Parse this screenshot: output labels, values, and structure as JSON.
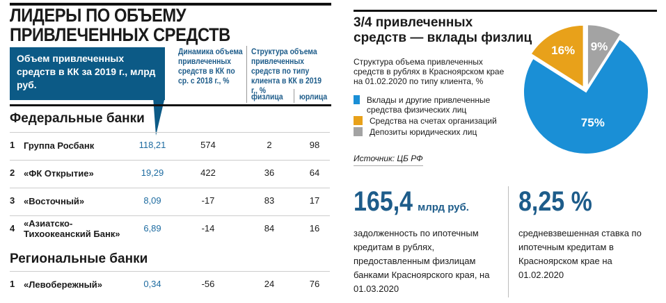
{
  "left": {
    "title_line1": "ЛИДЕРЫ ПО ОБЪЕМУ",
    "title_line2": "ПРИВЛЕЧЕННЫХ СРЕДСТВ",
    "col_volume": "Объем привлеченных средств в КК за 2019 г., млрд руб.",
    "col_dynamics": "Динамика объема привлеченных средств в КК по ср. с 2018 г., %",
    "col_structure": "Структура объема привлеченных средств по типу клиента в КК в 2019 г., %",
    "col_individuals": "физлица",
    "col_legal": "юрлица",
    "federal_title": "Федеральные банки",
    "regional_title": "Региональные банки",
    "federal": [
      {
        "n": "1",
        "name": "Группа Росбанк",
        "volume": "118,21",
        "dyn": "574",
        "fiz": "2",
        "yur": "98"
      },
      {
        "n": "2",
        "name": "«ФК Открытие»",
        "volume": "19,29",
        "dyn": "422",
        "fiz": "36",
        "yur": "64"
      },
      {
        "n": "3",
        "name": "«Восточный»",
        "volume": "8,09",
        "dyn": "-17",
        "fiz": "83",
        "yur": "17"
      },
      {
        "n": "4",
        "name": "«Азиатско-Тихоокеанский Банк»",
        "volume": "6,89",
        "dyn": "-14",
        "fiz": "84",
        "yur": "16"
      }
    ],
    "regional": [
      {
        "n": "1",
        "name": "«Левобережный»",
        "volume": "0,34",
        "dyn": "-56",
        "fiz": "24",
        "yur": "76"
      }
    ]
  },
  "right": {
    "title_line1": "3/4 привлеченных",
    "title_line2": "средств — вклады физлиц",
    "subtitle": "Структура объема привлеченных средств в рублях в Красноярском крае на 01.02.2020 по типу клиента, %",
    "source": "Источник: ЦБ РФ",
    "stat1_value": "165,4",
    "stat1_unit": "млрд руб.",
    "stat1_desc": "задолженность по ипотечным кредитам в рублях, предоставленным физлицам банками Красноярского края, на 01.03.2020",
    "stat2_value": "8,25 %",
    "stat2_desc": "средневзвешенная ставка по ипотечным кредитам в Красноярском крае на 01.02.2020"
  },
  "chart_data": {
    "type": "pie",
    "title": "Структура объема привлеченных средств в рублях в Красноярском крае на 01.02.2020 по типу клиента, %",
    "slices": [
      {
        "label": "Депозиты юридических лиц",
        "value": 9,
        "display": "9%",
        "color": "#a3a3a3"
      },
      {
        "label": "Вклады и другие привлеченные средства физических лиц",
        "value": 75,
        "display": "75%",
        "color": "#1a8fd6"
      },
      {
        "label": "Средства на счетах организаций",
        "value": 16,
        "display": "16%",
        "color": "#e8a11a"
      }
    ]
  }
}
